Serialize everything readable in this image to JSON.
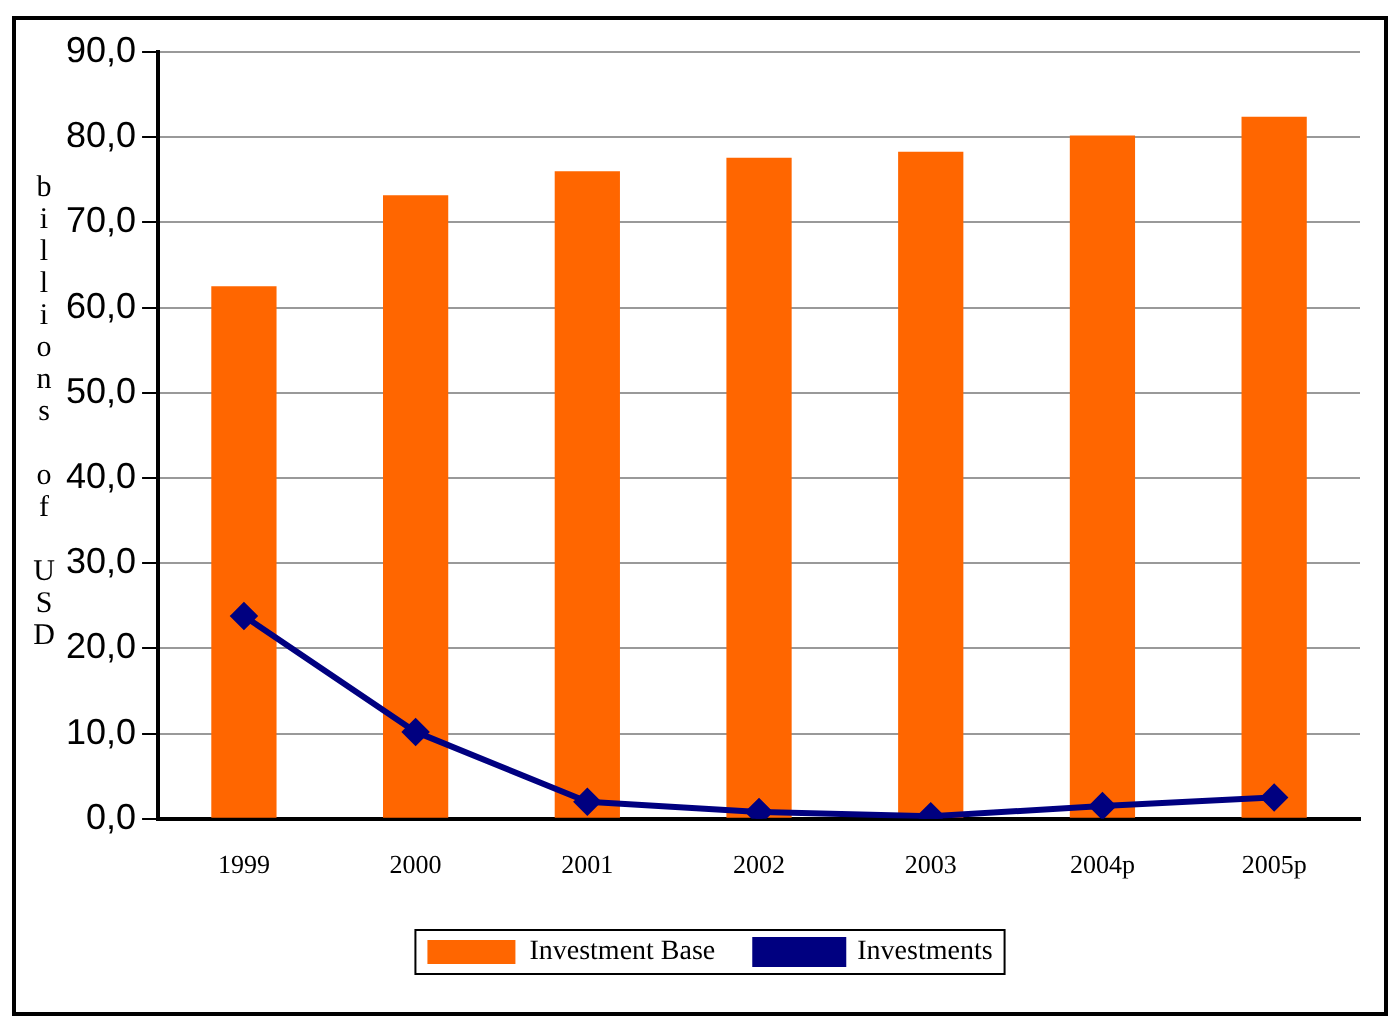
{
  "chart_data": {
    "type": "bar",
    "ylabel": "billions of USD",
    "categories": [
      "1999",
      "2000",
      "2001",
      "2002",
      "2003",
      "2004p",
      "2005p"
    ],
    "series": [
      {
        "name": "Investment Base",
        "color": "#ff6600",
        "values": [
          62.5,
          73.2,
          76.0,
          77.6,
          78.3,
          80.2,
          82.4
        ]
      },
      {
        "name": "Investments",
        "type": "line",
        "color": "#000080",
        "marker": "diamond",
        "values": [
          23.8,
          10.2,
          2.0,
          0.8,
          0.3,
          1.5,
          2.5
        ]
      }
    ],
    "ylim": [
      0,
      90
    ],
    "yticks": [
      {
        "value": 0,
        "label": "0,0"
      },
      {
        "value": 10,
        "label": "10,0"
      },
      {
        "value": 20,
        "label": "20,0"
      },
      {
        "value": 30,
        "label": "30,0"
      },
      {
        "value": 40,
        "label": "40,0"
      },
      {
        "value": 50,
        "label": "50,0"
      },
      {
        "value": 60,
        "label": "60,0"
      },
      {
        "value": 70,
        "label": "70,0"
      },
      {
        "value": 80,
        "label": "80,0"
      },
      {
        "value": 90,
        "label": "90,0"
      }
    ],
    "grid": "y",
    "legend": "bottom"
  }
}
